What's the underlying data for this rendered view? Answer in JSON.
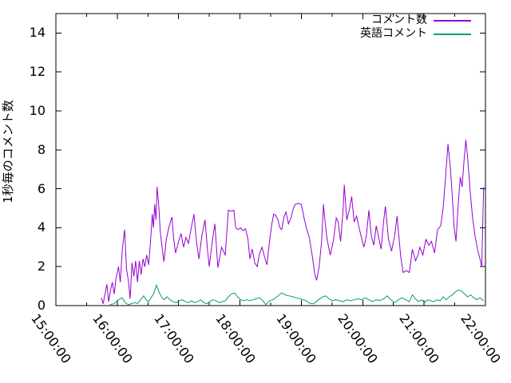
{
  "chart_data": {
    "type": "line",
    "title": "",
    "xlabel": "",
    "ylabel": "1秒毎のコメント数",
    "ylim": [
      0,
      15
    ],
    "xlim_hours": [
      15,
      22
    ],
    "grid": false,
    "legend_position": "top-right-inside",
    "background_color": "#ffffff",
    "axis_color": "#000000",
    "y_ticks": [
      0,
      2,
      4,
      6,
      8,
      10,
      12,
      14
    ],
    "x_minor_tick_interval_hours": 0.5,
    "x_ticks": [
      {
        "hour": 15,
        "label": "15:00:00"
      },
      {
        "hour": 16,
        "label": "16:00:00"
      },
      {
        "hour": 17,
        "label": "17:00:00"
      },
      {
        "hour": 18,
        "label": "18:00:00"
      },
      {
        "hour": 19,
        "label": "19:00:00"
      },
      {
        "hour": 20,
        "label": "20:00:00"
      },
      {
        "hour": 21,
        "label": "21:00:00"
      },
      {
        "hour": 22,
        "label": "22:00:00"
      }
    ],
    "series": [
      {
        "name": "コメント数",
        "color": "#9400d3",
        "points": [
          [
            15.74,
            0.4
          ],
          [
            15.77,
            0.1
          ],
          [
            15.8,
            0.6
          ],
          [
            15.83,
            1.1
          ],
          [
            15.86,
            0.2
          ],
          [
            15.89,
            0.8
          ],
          [
            15.92,
            1.2
          ],
          [
            15.95,
            0.6
          ],
          [
            15.98,
            1.4
          ],
          [
            16.02,
            2.0
          ],
          [
            16.05,
            1.2
          ],
          [
            16.08,
            2.8
          ],
          [
            16.12,
            3.9
          ],
          [
            16.15,
            1.9
          ],
          [
            16.18,
            1.3
          ],
          [
            16.21,
            0.35
          ],
          [
            16.24,
            2.2
          ],
          [
            16.27,
            1.5
          ],
          [
            16.3,
            2.3
          ],
          [
            16.33,
            1.2
          ],
          [
            16.36,
            2.3
          ],
          [
            16.39,
            1.6
          ],
          [
            16.42,
            2.4
          ],
          [
            16.45,
            2.0
          ],
          [
            16.48,
            2.6
          ],
          [
            16.51,
            2.1
          ],
          [
            16.54,
            3.2
          ],
          [
            16.57,
            4.7
          ],
          [
            16.59,
            4.0
          ],
          [
            16.61,
            5.2
          ],
          [
            16.63,
            4.4
          ],
          [
            16.65,
            6.1
          ],
          [
            16.68,
            5.0
          ],
          [
            16.7,
            3.8
          ],
          [
            16.73,
            3.0
          ],
          [
            16.76,
            2.25
          ],
          [
            16.8,
            3.4
          ],
          [
            16.84,
            4.0
          ],
          [
            16.89,
            4.55
          ],
          [
            16.92,
            3.4
          ],
          [
            16.95,
            2.7
          ],
          [
            17.0,
            3.3
          ],
          [
            17.04,
            3.7
          ],
          [
            17.08,
            3.0
          ],
          [
            17.12,
            3.5
          ],
          [
            17.16,
            3.2
          ],
          [
            17.2,
            3.9
          ],
          [
            17.25,
            4.7
          ],
          [
            17.29,
            3.3
          ],
          [
            17.33,
            2.4
          ],
          [
            17.38,
            3.6
          ],
          [
            17.43,
            4.4
          ],
          [
            17.47,
            2.9
          ],
          [
            17.5,
            2.0
          ],
          [
            17.54,
            3.1
          ],
          [
            17.59,
            4.2
          ],
          [
            17.64,
            1.95
          ],
          [
            17.7,
            3.0
          ],
          [
            17.76,
            2.6
          ],
          [
            17.81,
            4.9
          ],
          [
            17.86,
            4.85
          ],
          [
            17.9,
            4.9
          ],
          [
            17.93,
            4.0
          ],
          [
            17.97,
            3.9
          ],
          [
            18.01,
            4.0
          ],
          [
            18.05,
            3.85
          ],
          [
            18.09,
            3.95
          ],
          [
            18.13,
            3.4
          ],
          [
            18.16,
            2.4
          ],
          [
            18.2,
            2.9
          ],
          [
            18.24,
            2.2
          ],
          [
            18.28,
            2.0
          ],
          [
            18.32,
            2.7
          ],
          [
            18.36,
            3.0
          ],
          [
            18.4,
            2.5
          ],
          [
            18.44,
            2.1
          ],
          [
            18.48,
            3.3
          ],
          [
            18.52,
            4.2
          ],
          [
            18.55,
            4.7
          ],
          [
            18.58,
            4.65
          ],
          [
            18.62,
            4.4
          ],
          [
            18.65,
            4.0
          ],
          [
            18.68,
            3.9
          ],
          [
            18.72,
            4.6
          ],
          [
            18.75,
            4.8
          ],
          [
            18.79,
            4.2
          ],
          [
            18.83,
            4.5
          ],
          [
            18.87,
            5.0
          ],
          [
            18.9,
            5.2
          ],
          [
            18.95,
            5.25
          ],
          [
            19.0,
            5.2
          ],
          [
            19.05,
            4.4
          ],
          [
            19.1,
            3.8
          ],
          [
            19.13,
            3.5
          ],
          [
            19.18,
            2.5
          ],
          [
            19.22,
            1.6
          ],
          [
            19.25,
            1.3
          ],
          [
            19.29,
            2.0
          ],
          [
            19.33,
            3.3
          ],
          [
            19.36,
            5.2
          ],
          [
            19.39,
            4.2
          ],
          [
            19.42,
            3.4
          ],
          [
            19.47,
            2.6
          ],
          [
            19.52,
            3.3
          ],
          [
            19.57,
            4.5
          ],
          [
            19.6,
            4.3
          ],
          [
            19.64,
            3.3
          ],
          [
            19.68,
            4.9
          ],
          [
            19.7,
            6.2
          ],
          [
            19.74,
            4.4
          ],
          [
            19.78,
            4.9
          ],
          [
            19.82,
            5.6
          ],
          [
            19.86,
            4.3
          ],
          [
            19.9,
            4.6
          ],
          [
            19.94,
            4.0
          ],
          [
            19.98,
            3.5
          ],
          [
            20.02,
            3.0
          ],
          [
            20.06,
            3.6
          ],
          [
            20.1,
            4.9
          ],
          [
            20.14,
            3.6
          ],
          [
            20.18,
            3.1
          ],
          [
            20.22,
            4.1
          ],
          [
            20.26,
            3.5
          ],
          [
            20.3,
            2.9
          ],
          [
            20.34,
            4.3
          ],
          [
            20.37,
            5.1
          ],
          [
            20.42,
            3.4
          ],
          [
            20.47,
            2.8
          ],
          [
            20.52,
            3.6
          ],
          [
            20.56,
            4.6
          ],
          [
            20.62,
            2.5
          ],
          [
            20.66,
            1.7
          ],
          [
            20.71,
            1.8
          ],
          [
            20.76,
            1.7
          ],
          [
            20.81,
            2.9
          ],
          [
            20.86,
            2.3
          ],
          [
            20.9,
            2.6
          ],
          [
            20.93,
            3.0
          ],
          [
            20.98,
            2.6
          ],
          [
            21.03,
            3.4
          ],
          [
            21.08,
            3.1
          ],
          [
            21.12,
            3.3
          ],
          [
            21.17,
            2.7
          ],
          [
            21.22,
            3.9
          ],
          [
            21.27,
            4.1
          ],
          [
            21.31,
            5.0
          ],
          [
            21.35,
            6.6
          ],
          [
            21.39,
            8.3
          ],
          [
            21.43,
            7.0
          ],
          [
            21.46,
            5.6
          ],
          [
            21.49,
            4.0
          ],
          [
            21.52,
            3.3
          ],
          [
            21.56,
            5.4
          ],
          [
            21.59,
            6.6
          ],
          [
            21.62,
            6.1
          ],
          [
            21.65,
            7.4
          ],
          [
            21.68,
            8.5
          ],
          [
            21.71,
            7.6
          ],
          [
            21.75,
            5.9
          ],
          [
            21.79,
            4.5
          ],
          [
            21.83,
            3.6
          ],
          [
            21.87,
            2.9
          ],
          [
            21.91,
            2.4
          ],
          [
            21.94,
            2.0
          ],
          [
            21.97,
            6.1
          ]
        ]
      },
      {
        "name": "英語コメント",
        "color": "#009e73",
        "points": [
          [
            15.88,
            0.05
          ],
          [
            15.95,
            0.1
          ],
          [
            16.02,
            0.3
          ],
          [
            16.08,
            0.4
          ],
          [
            16.13,
            0.15
          ],
          [
            16.18,
            0.05
          ],
          [
            16.23,
            0.1
          ],
          [
            16.28,
            0.15
          ],
          [
            16.33,
            0.1
          ],
          [
            16.38,
            0.3
          ],
          [
            16.43,
            0.5
          ],
          [
            16.47,
            0.3
          ],
          [
            16.51,
            0.2
          ],
          [
            16.55,
            0.4
          ],
          [
            16.59,
            0.6
          ],
          [
            16.64,
            1.05
          ],
          [
            16.68,
            0.7
          ],
          [
            16.72,
            0.45
          ],
          [
            16.76,
            0.3
          ],
          [
            16.81,
            0.45
          ],
          [
            16.86,
            0.3
          ],
          [
            16.91,
            0.2
          ],
          [
            16.96,
            0.15
          ],
          [
            17.01,
            0.25
          ],
          [
            17.06,
            0.3
          ],
          [
            17.11,
            0.2
          ],
          [
            17.16,
            0.15
          ],
          [
            17.21,
            0.25
          ],
          [
            17.26,
            0.15
          ],
          [
            17.31,
            0.2
          ],
          [
            17.36,
            0.3
          ],
          [
            17.41,
            0.15
          ],
          [
            17.46,
            0.1
          ],
          [
            17.51,
            0.2
          ],
          [
            17.56,
            0.3
          ],
          [
            17.61,
            0.25
          ],
          [
            17.66,
            0.15
          ],
          [
            17.71,
            0.2
          ],
          [
            17.76,
            0.25
          ],
          [
            17.81,
            0.45
          ],
          [
            17.86,
            0.6
          ],
          [
            17.91,
            0.65
          ],
          [
            17.96,
            0.45
          ],
          [
            18.01,
            0.3
          ],
          [
            18.06,
            0.25
          ],
          [
            18.11,
            0.3
          ],
          [
            18.16,
            0.25
          ],
          [
            18.21,
            0.3
          ],
          [
            18.26,
            0.35
          ],
          [
            18.31,
            0.4
          ],
          [
            18.36,
            0.3
          ],
          [
            18.42,
            0.05
          ],
          [
            18.48,
            0.25
          ],
          [
            18.54,
            0.3
          ],
          [
            18.6,
            0.45
          ],
          [
            18.68,
            0.65
          ],
          [
            18.74,
            0.55
          ],
          [
            18.8,
            0.5
          ],
          [
            18.86,
            0.45
          ],
          [
            18.92,
            0.4
          ],
          [
            18.98,
            0.35
          ],
          [
            19.04,
            0.3
          ],
          [
            19.1,
            0.2
          ],
          [
            19.15,
            0.1
          ],
          [
            19.2,
            0.1
          ],
          [
            19.28,
            0.3
          ],
          [
            19.35,
            0.45
          ],
          [
            19.4,
            0.5
          ],
          [
            19.45,
            0.35
          ],
          [
            19.5,
            0.25
          ],
          [
            19.56,
            0.3
          ],
          [
            19.62,
            0.25
          ],
          [
            19.68,
            0.2
          ],
          [
            19.74,
            0.3
          ],
          [
            19.8,
            0.25
          ],
          [
            19.86,
            0.3
          ],
          [
            19.92,
            0.35
          ],
          [
            19.98,
            0.3
          ],
          [
            20.04,
            0.4
          ],
          [
            20.1,
            0.3
          ],
          [
            20.16,
            0.2
          ],
          [
            20.22,
            0.3
          ],
          [
            20.28,
            0.25
          ],
          [
            20.34,
            0.35
          ],
          [
            20.4,
            0.5
          ],
          [
            20.46,
            0.3
          ],
          [
            20.52,
            0.15
          ],
          [
            20.58,
            0.3
          ],
          [
            20.64,
            0.4
          ],
          [
            20.7,
            0.3
          ],
          [
            20.76,
            0.2
          ],
          [
            20.81,
            0.55
          ],
          [
            20.86,
            0.35
          ],
          [
            20.91,
            0.2
          ],
          [
            20.96,
            0.3
          ],
          [
            21.01,
            0.15
          ],
          [
            21.06,
            0.3
          ],
          [
            21.11,
            0.25
          ],
          [
            21.16,
            0.2
          ],
          [
            21.21,
            0.3
          ],
          [
            21.26,
            0.25
          ],
          [
            21.31,
            0.45
          ],
          [
            21.36,
            0.3
          ],
          [
            21.41,
            0.45
          ],
          [
            21.46,
            0.55
          ],
          [
            21.51,
            0.7
          ],
          [
            21.56,
            0.8
          ],
          [
            21.61,
            0.75
          ],
          [
            21.66,
            0.6
          ],
          [
            21.71,
            0.45
          ],
          [
            21.76,
            0.55
          ],
          [
            21.81,
            0.4
          ],
          [
            21.86,
            0.3
          ],
          [
            21.91,
            0.4
          ],
          [
            21.95,
            0.3
          ],
          [
            21.97,
            0.25
          ]
        ]
      }
    ]
  }
}
